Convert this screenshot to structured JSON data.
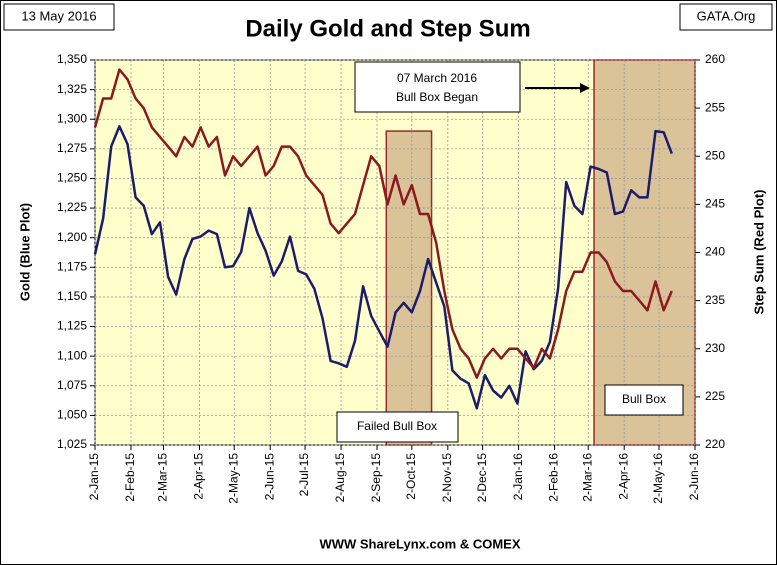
{
  "chart_data": {
    "type": "line",
    "title": "Daily Gold and Step Sum",
    "date_label": "13 May 2016",
    "source_label": "GATA.Org",
    "footer": "WWW ShareLynx.com & COMEX",
    "ylabel": "Gold   (Blue Plot)",
    "y2label": "Step Sum   (Red Plot)",
    "annotation": [
      "07 March 2016",
      "Bull Box Began"
    ],
    "regions": [
      {
        "label": "Failed Bull Box",
        "start": "2015-09-10",
        "end": "2015-10-19",
        "top": 1290
      },
      {
        "label": "Bull Box",
        "start": "2016-03-07",
        "end": "2016-06-02",
        "top": 1350
      }
    ],
    "x": [
      "2015-01-02",
      "2015-01-09",
      "2015-01-16",
      "2015-01-23",
      "2015-01-30",
      "2015-02-06",
      "2015-02-13",
      "2015-02-20",
      "2015-02-27",
      "2015-03-06",
      "2015-03-13",
      "2015-03-20",
      "2015-03-27",
      "2015-04-03",
      "2015-04-10",
      "2015-04-17",
      "2015-04-24",
      "2015-05-01",
      "2015-05-08",
      "2015-05-15",
      "2015-05-22",
      "2015-05-29",
      "2015-06-05",
      "2015-06-12",
      "2015-06-19",
      "2015-06-26",
      "2015-07-03",
      "2015-07-10",
      "2015-07-17",
      "2015-07-24",
      "2015-07-31",
      "2015-08-07",
      "2015-08-14",
      "2015-08-21",
      "2015-08-28",
      "2015-09-04",
      "2015-09-11",
      "2015-09-18",
      "2015-09-25",
      "2015-10-02",
      "2015-10-09",
      "2015-10-16",
      "2015-10-23",
      "2015-10-30",
      "2015-11-06",
      "2015-11-13",
      "2015-11-20",
      "2015-11-27",
      "2015-12-04",
      "2015-12-11",
      "2015-12-18",
      "2015-12-25",
      "2016-01-01",
      "2016-01-08",
      "2016-01-15",
      "2016-01-22",
      "2016-01-29",
      "2016-02-05",
      "2016-02-12",
      "2016-02-19",
      "2016-02-26",
      "2016-03-04",
      "2016-03-11",
      "2016-03-18",
      "2016-03-25",
      "2016-04-01",
      "2016-04-08",
      "2016-04-15",
      "2016-04-22",
      "2016-04-29",
      "2016-05-06",
      "2016-05-13"
    ],
    "series": [
      {
        "name": "Gold",
        "color": "#1c1c6b",
        "values": [
          1186,
          1216,
          1277,
          1294,
          1279,
          1234,
          1227,
          1203,
          1213,
          1167,
          1152,
          1182,
          1199,
          1201,
          1206,
          1203,
          1175,
          1176,
          1188,
          1225,
          1204,
          1189,
          1168,
          1180,
          1201,
          1172,
          1169,
          1157,
          1132,
          1096,
          1094,
          1091,
          1113,
          1159,
          1134,
          1121,
          1108,
          1137,
          1145,
          1137,
          1155,
          1182,
          1162,
          1142,
          1088,
          1081,
          1077,
          1056,
          1084,
          1071,
          1065,
          1075,
          1060,
          1104,
          1089,
          1096,
          1112,
          1157,
          1247,
          1227,
          1220,
          1260,
          1258,
          1255,
          1220,
          1222,
          1240,
          1234,
          1234,
          1290,
          1289,
          1271
        ]
      },
      {
        "name": "Step Sum",
        "color": "#8b1a1f",
        "axis": "y2",
        "values": [
          253,
          256,
          256,
          259,
          258,
          256,
          255,
          253,
          252,
          251,
          250,
          252,
          251,
          253,
          251,
          252,
          248,
          250,
          249,
          250,
          251,
          248,
          249,
          251,
          251,
          250,
          248,
          247,
          246,
          243,
          242,
          243,
          244,
          247,
          250,
          249,
          245,
          248,
          245,
          247,
          244,
          244,
          241,
          236,
          232,
          230,
          229,
          227,
          229,
          230,
          229,
          230,
          230,
          229,
          228,
          230,
          229,
          232,
          236,
          238,
          238,
          240,
          240,
          239,
          237,
          236,
          236,
          235,
          234,
          237,
          234,
          236
        ]
      }
    ],
    "xlim": [
      "2015-01-02",
      "2016-06-02"
    ],
    "xticks": [
      {
        "value": "2015-01-02",
        "label": "2-Jan-15"
      },
      {
        "value": "2015-02-02",
        "label": "2-Feb-15"
      },
      {
        "value": "2015-03-02",
        "label": "2-Mar-15"
      },
      {
        "value": "2015-04-02",
        "label": "2-Apr-15"
      },
      {
        "value": "2015-05-02",
        "label": "2-May-15"
      },
      {
        "value": "2015-06-02",
        "label": "2-Jun-15"
      },
      {
        "value": "2015-07-02",
        "label": "2-Jul-15"
      },
      {
        "value": "2015-08-02",
        "label": "2-Aug-15"
      },
      {
        "value": "2015-09-02",
        "label": "2-Sep-15"
      },
      {
        "value": "2015-10-02",
        "label": "2-Oct-15"
      },
      {
        "value": "2015-11-02",
        "label": "2-Nov-15"
      },
      {
        "value": "2015-12-02",
        "label": "2-Dec-15"
      },
      {
        "value": "2016-01-02",
        "label": "2-Jan-16"
      },
      {
        "value": "2016-02-02",
        "label": "2-Feb-16"
      },
      {
        "value": "2016-03-02",
        "label": "2-Mar-16"
      },
      {
        "value": "2016-04-02",
        "label": "2-Apr-16"
      },
      {
        "value": "2016-05-02",
        "label": "2-May-16"
      },
      {
        "value": "2016-06-02",
        "label": "2-Jun-16"
      }
    ],
    "ylim": [
      1025,
      1350
    ],
    "yticks": [
      {
        "value": 1025,
        "label": "1,025"
      },
      {
        "value": 1050,
        "label": "1,050"
      },
      {
        "value": 1075,
        "label": "1,075"
      },
      {
        "value": 1100,
        "label": "1,100"
      },
      {
        "value": 1125,
        "label": "1,125"
      },
      {
        "value": 1150,
        "label": "1,150"
      },
      {
        "value": 1175,
        "label": "1,175"
      },
      {
        "value": 1200,
        "label": "1,200"
      },
      {
        "value": 1225,
        "label": "1,225"
      },
      {
        "value": 1250,
        "label": "1,250"
      },
      {
        "value": 1275,
        "label": "1,275"
      },
      {
        "value": 1300,
        "label": "1,300"
      },
      {
        "value": 1325,
        "label": "1,325"
      },
      {
        "value": 1350,
        "label": "1,350"
      }
    ],
    "y2lim": [
      220,
      260
    ],
    "y2ticks": [
      220,
      225,
      230,
      235,
      240,
      245,
      250,
      255,
      260
    ],
    "grid": true
  }
}
